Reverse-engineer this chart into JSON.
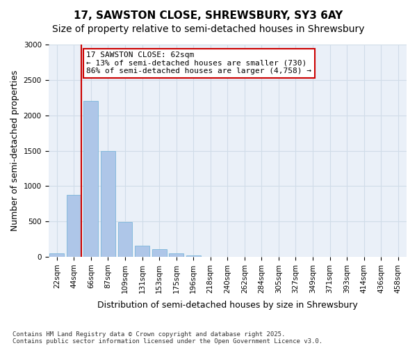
{
  "title_line1": "17, SAWSTON CLOSE, SHREWSBURY, SY3 6AY",
  "title_line2": "Size of property relative to semi-detached houses in Shrewsbury",
  "xlabel": "Distribution of semi-detached houses by size in Shrewsbury",
  "ylabel": "Number of semi-detached properties",
  "footnote": "Contains HM Land Registry data © Crown copyright and database right 2025.\nContains public sector information licensed under the Open Government Licence v3.0.",
  "bin_labels": [
    "22sqm",
    "44sqm",
    "66sqm",
    "87sqm",
    "109sqm",
    "131sqm",
    "153sqm",
    "175sqm",
    "196sqm",
    "218sqm",
    "240sqm",
    "262sqm",
    "284sqm",
    "305sqm",
    "327sqm",
    "349sqm",
    "371sqm",
    "393sqm",
    "414sqm",
    "436sqm",
    "458sqm"
  ],
  "bar_values": [
    50,
    880,
    2200,
    1500,
    490,
    160,
    110,
    50,
    20,
    5,
    0,
    0,
    0,
    0,
    0,
    0,
    0,
    0,
    0,
    0,
    0
  ],
  "bar_color": "#aec6e8",
  "bar_edge_color": "#6aaed6",
  "grid_color": "#d0dce8",
  "background_color": "#eaf0f8",
  "property_size": 62,
  "property_bin_index": 1,
  "annotation_text": "17 SAWSTON CLOSE: 62sqm\n← 13% of semi-detached houses are smaller (730)\n86% of semi-detached houses are larger (4,758) →",
  "annotation_box_color": "#ffffff",
  "annotation_box_edge_color": "#cc0000",
  "red_line_color": "#cc0000",
  "ylim": [
    0,
    3000
  ],
  "yticks": [
    0,
    500,
    1000,
    1500,
    2000,
    2500,
    3000
  ],
  "title_fontsize": 11,
  "subtitle_fontsize": 10,
  "axis_label_fontsize": 9,
  "tick_fontsize": 7.5,
  "annotation_fontsize": 8
}
